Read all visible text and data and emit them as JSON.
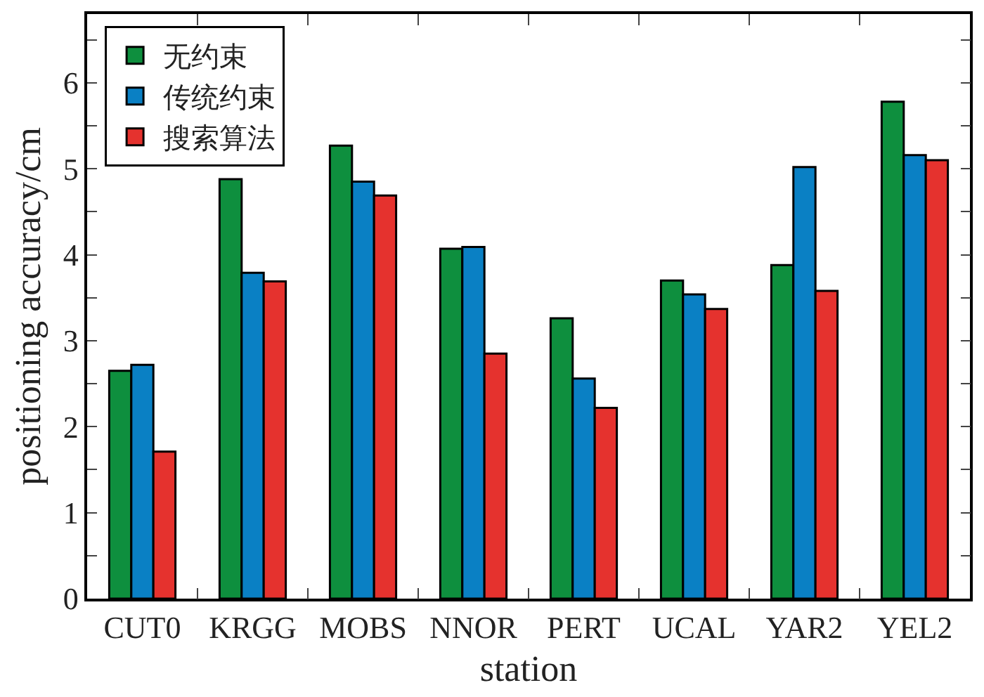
{
  "chart_data": {
    "type": "bar",
    "xlabel": "station",
    "ylabel": "positioning accuracy/cm",
    "categories": [
      "CUT0",
      "KRGG",
      "MOBS",
      "NNOR",
      "PERT",
      "UCAL",
      "YAR2",
      "YEL2"
    ],
    "series": [
      {
        "name": "无约束",
        "color": "#0e8f3e",
        "values": [
          2.65,
          4.88,
          5.27,
          4.07,
          3.26,
          3.7,
          3.88,
          5.78
        ]
      },
      {
        "name": "传统约束",
        "color": "#0a80c4",
        "values": [
          2.72,
          3.79,
          4.85,
          4.09,
          2.56,
          3.54,
          5.02,
          5.16
        ]
      },
      {
        "name": "搜索算法",
        "color": "#e5322e",
        "values": [
          1.71,
          3.69,
          4.69,
          2.85,
          2.22,
          3.37,
          3.58,
          5.1
        ]
      }
    ],
    "ylim": [
      0,
      6.8
    ],
    "yticks": [
      0,
      {
        "value": 0.5,
        "label": null
      },
      1,
      {
        "value": 1.5,
        "label": null
      },
      2,
      {
        "value": 2.5,
        "label": null
      },
      3,
      {
        "value": 3.5,
        "label": null
      },
      4,
      {
        "value": 4.5,
        "label": null
      },
      5,
      {
        "value": 5.5,
        "label": null
      },
      6,
      {
        "value": 6.5,
        "label": null
      }
    ],
    "grid": false,
    "legend": "top left"
  }
}
